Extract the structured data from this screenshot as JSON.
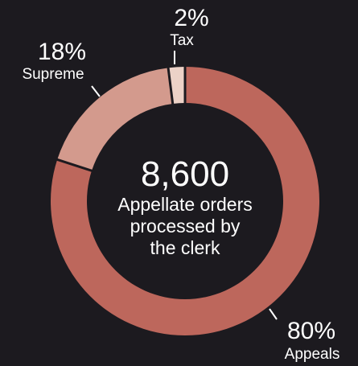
{
  "chart_data": {
    "type": "pie",
    "donut": true,
    "total": "8,600",
    "total_caption": [
      "Appellate orders",
      "processed by",
      "the clerk"
    ],
    "slices": [
      {
        "category": "Appeals",
        "label": "80%",
        "value": 80,
        "color": "#bd675c"
      },
      {
        "category": "Supreme",
        "label": "18%",
        "value": 18,
        "color": "#d39a8d"
      },
      {
        "category": "Tax",
        "label": "2%",
        "value": 2,
        "color": "#ecd2c7"
      }
    ],
    "legend": "none"
  }
}
